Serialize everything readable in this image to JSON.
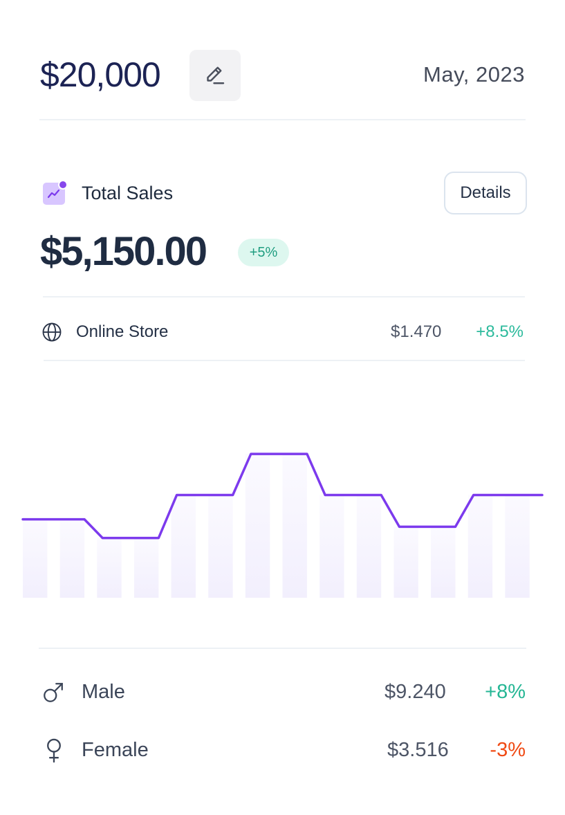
{
  "header": {
    "budget_amount": "$20,000",
    "period": "May, 2023",
    "edit_icon": "pencil-icon"
  },
  "sales": {
    "icon": "trend-chart-icon",
    "title": "Total Sales",
    "details_label": "Details",
    "total": "$5,150.00",
    "change": "+5%"
  },
  "store": {
    "icon": "globe-icon",
    "label": "Online Store",
    "value": "$1.470",
    "change": "+8.5%"
  },
  "chart_data": {
    "type": "line",
    "values": [
      42,
      42,
      32,
      32,
      55,
      55,
      77,
      77,
      55,
      55,
      38,
      38,
      55,
      55
    ],
    "ylim": [
      0,
      100
    ],
    "grid": false,
    "colors": {
      "line": "#7c3aed",
      "bars_top": "#fbfaff",
      "bars_bottom": "#f2effd"
    }
  },
  "segments": [
    {
      "icon": "male-icon",
      "label": "Male",
      "value": "$9.240",
      "change": "+8%",
      "color": "#25b694"
    },
    {
      "icon": "female-icon",
      "label": "Female",
      "value": "$3.516",
      "change": "-3%",
      "color": "#f04a14"
    }
  ]
}
